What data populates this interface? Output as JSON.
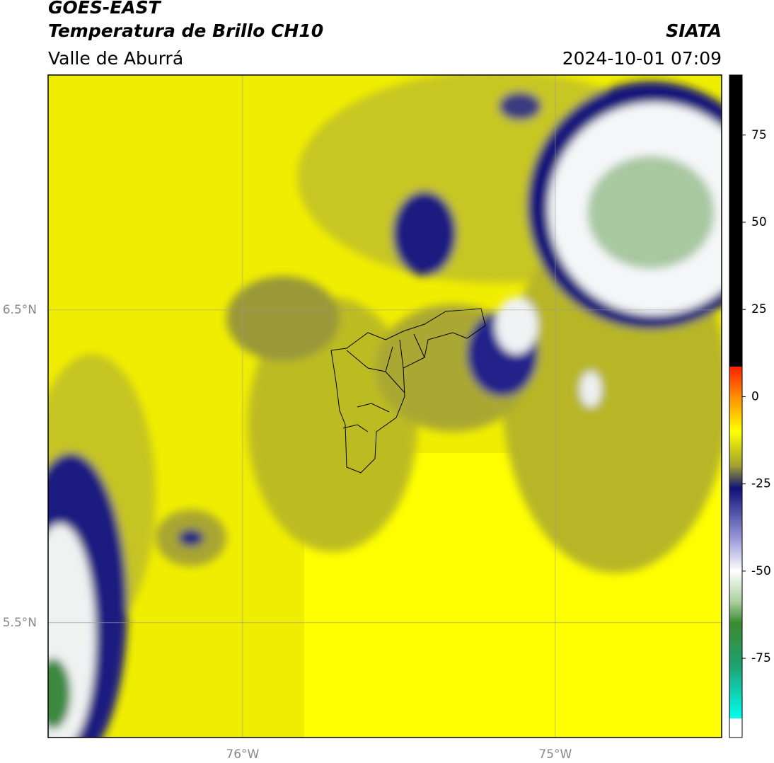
{
  "header": {
    "title": "GOES-EAST",
    "subtitle": "Temperatura de Brillo CH10",
    "region": "Valle de Aburrá",
    "source": "SIATA",
    "timestamp": "2024-10-01 07:09"
  },
  "map": {
    "lat_lim": [
      5.133,
      7.251
    ],
    "lon_lim": [
      -76.622,
      -74.468
    ],
    "lat_ticks": [
      {
        "value": 6.5,
        "label": "6.5°N"
      },
      {
        "value": 5.5,
        "label": "5.5°N"
      }
    ],
    "lon_ticks": [
      {
        "value": -76,
        "label": "76°W"
      },
      {
        "value": -75,
        "label": "75°W"
      }
    ],
    "grid": true
  },
  "colorbar": {
    "lim": [
      -97.7,
      92.2
    ],
    "ticks": [
      75,
      50,
      25,
      0,
      -25,
      -50,
      -75
    ]
  }
}
